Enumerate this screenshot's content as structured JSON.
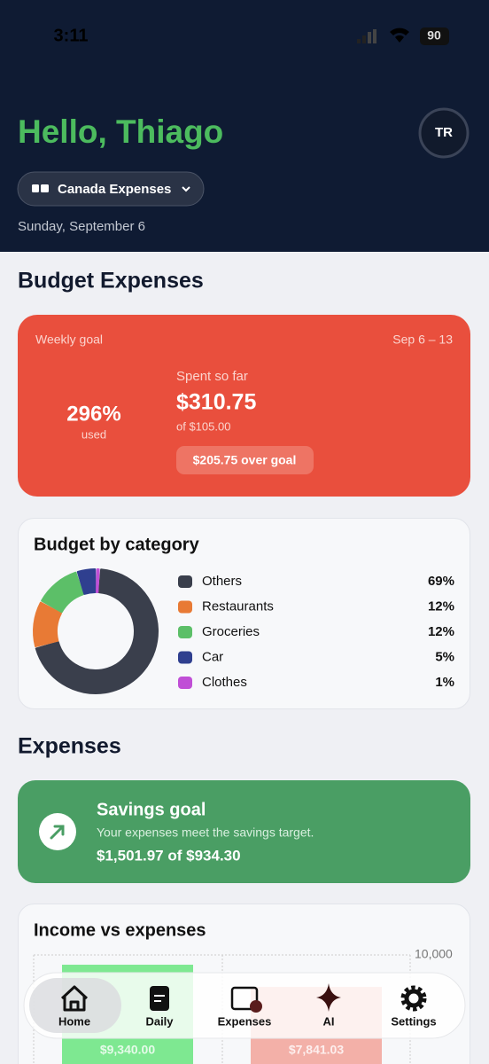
{
  "status_bar": {
    "time": "3:11",
    "battery": "90"
  },
  "header": {
    "greeting": "Hello, Thiago",
    "avatar": "TR",
    "account": "Canada Expenses",
    "date": "Sunday, September 6"
  },
  "budget": {
    "heading": "Budget Expenses",
    "card": {
      "label": "Weekly goal",
      "range": "Sep 6 – 13",
      "percent": "296%",
      "percent_caption": "used",
      "spent_label": "Spent so far",
      "spent": "$310.75",
      "goal": "of $105.00",
      "over": "$205.75 over goal"
    }
  },
  "expenses": {
    "heading": "Expenses",
    "savings": {
      "title": "Savings goal",
      "text": "Your expenses meet the savings target.",
      "amount": "$1,501.97 of $934.30"
    }
  },
  "tab_bar": {
    "items": [
      "Home",
      "Daily",
      "Expenses",
      "AI",
      "Settings"
    ]
  },
  "chart_data": [
    {
      "type": "pie",
      "title": "Budget by category",
      "categories": [
        "Others",
        "Restaurants",
        "Groceries",
        "Car",
        "Clothes"
      ],
      "values": [
        69,
        12,
        12,
        5,
        1
      ],
      "value_labels": [
        "69%",
        "12%",
        "12%",
        "5%",
        "1%"
      ],
      "colors": [
        "#3a3f4c",
        "#e87a35",
        "#5cbf68",
        "#2f3f8f",
        "#c04fd6"
      ]
    },
    {
      "type": "bar",
      "title": "Income vs expenses",
      "categories": [
        null,
        null
      ],
      "values": [
        9340,
        7841.03
      ],
      "value_labels": [
        "$9,340.00",
        "$7,841.03"
      ],
      "colors": [
        "#7ee891",
        "#f3b0a8"
      ],
      "ylim": [
        0,
        10000
      ],
      "yticks": [
        {
          "value": 10000,
          "label": "10,000"
        }
      ],
      "grid": true
    }
  ]
}
